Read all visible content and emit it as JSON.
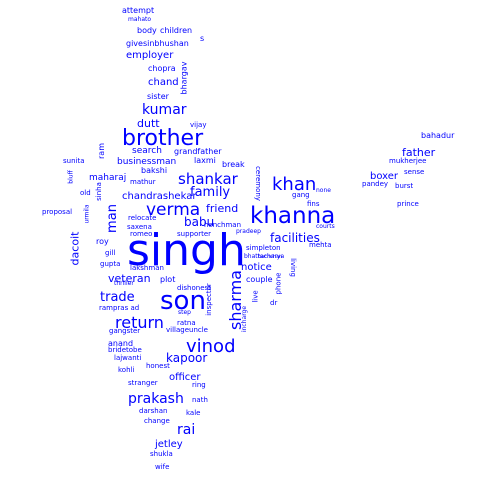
{
  "word_color": "#0000ff",
  "background_color": "#ffffff",
  "words": [
    "singh",
    "son",
    "khanna",
    "brother",
    "vinod",
    "return",
    "verma",
    "khan",
    "sharma",
    "shankar",
    "kumar",
    "prakash",
    "trade",
    "rai",
    "facilities",
    "family",
    "father",
    "babu",
    "friend",
    "man",
    "kapoor",
    "dacoit",
    "veteran",
    "dutt",
    "officer",
    "search",
    "businessman",
    "chand",
    "boxer",
    "notice",
    "employer",
    "chandrashekar",
    "jetley",
    "body",
    "children",
    "givesinbhushan",
    "attempt",
    "mahato",
    "s",
    "chopra",
    "bhargav",
    "sister",
    "vijay",
    "ram",
    "grandfather",
    "laxmi",
    "break",
    "bakshi",
    "maharaj",
    "mathur",
    "ceremony",
    "gang",
    "fins",
    "none",
    "courts",
    "mehta",
    "prince",
    "burst",
    "sense",
    "pandey",
    "mukherjee",
    "bahadur",
    "sunita",
    "bluff",
    "urmila",
    "old",
    "sinha",
    "proposal",
    "relocate",
    "saxena",
    "henchman",
    "pradeep",
    "supporter",
    "romeo",
    "roy",
    "gill",
    "gupta",
    "lakshman",
    "simpleton",
    "bhattacharya",
    "living",
    "phone",
    "couple",
    "live",
    "inspector",
    "thriller",
    "plot",
    "dishonest",
    "step",
    "rampras ad",
    "gangster",
    "villageuncle",
    "ratna",
    "dr",
    "incharge",
    "bachchan",
    "anand",
    "bridetobe",
    "lajwanti",
    "kohli",
    "honest",
    "stranger",
    "ring",
    "darshan",
    "nath",
    "kale",
    "change",
    "shukla",
    "wife"
  ]
}
